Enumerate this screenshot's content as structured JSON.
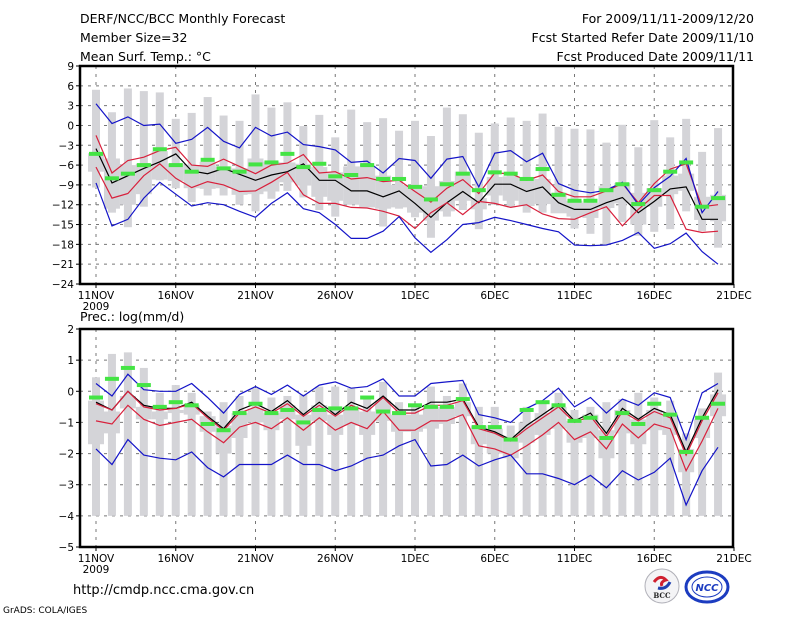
{
  "header": {
    "title": "DERF/NCC/BCC Monthly Forecast",
    "member_size": "Member Size=32",
    "variable": "Mean Surf. Temp.: °C",
    "period": "For 2009/11/11-2009/12/20",
    "started": "Fcst Started Refer Date 2009/11/10",
    "produced": "Fcst Produced Date 2009/11/11"
  },
  "footer": {
    "url": "http://cmdp.ncc.cma.gov.cn",
    "grads": "GrADS: COLA/IGES",
    "logo_left": "BCC",
    "logo_right": "NCC"
  },
  "colors": {
    "mean": "#000000",
    "inner": "#d8203c",
    "outer": "#1414c8",
    "marker": "#44e444",
    "bar": "#d4d4d8",
    "grid": "#777777"
  },
  "chart_data": [
    {
      "type": "line",
      "title": "Mean Surf. Temp.: °C",
      "xlabel": "",
      "ylabel": "",
      "x_ticks": [
        "11NOV",
        "16NOV",
        "21NOV",
        "26NOV",
        "1DEC",
        "6DEC",
        "11DEC",
        "16DEC",
        "21DEC"
      ],
      "x_year_label": "2009",
      "x_days": 40,
      "x_range_days": [
        -1,
        40
      ],
      "ylim": [
        -24,
        9
      ],
      "y_ticks": [
        9,
        6,
        3,
        0,
        -3,
        -6,
        -9,
        -12,
        -15,
        -18,
        -21,
        -24
      ],
      "grid": true,
      "series": [
        {
          "name": "ensemble-mean",
          "color_key": "mean",
          "values": [
            -3.5,
            -8.7,
            -7.6,
            -6.5,
            -5.5,
            -4.3,
            -6.9,
            -7.3,
            -6.5,
            -7.4,
            -8.3,
            -7.5,
            -7.0,
            -5.8,
            -8.3,
            -8.3,
            -9.9,
            -9.9,
            -10.8,
            -9.9,
            -11.8,
            -13.9,
            -11.7,
            -10.0,
            -11.7,
            -8.9,
            -8.9,
            -10.0,
            -9.3,
            -11.7,
            -12.7,
            -12.7,
            -11.7,
            -10.9,
            -13.2,
            -11.5,
            -9.6,
            -9.3,
            -14.2,
            -14.2
          ]
        },
        {
          "name": "inner-upper",
          "color_key": "inner",
          "values": [
            -1.5,
            -7.2,
            -5.3,
            -4.8,
            -3.8,
            -3.3,
            -6.0,
            -6.2,
            -5.1,
            -6.2,
            -7.3,
            -6.0,
            -5.7,
            -4.4,
            -7.2,
            -7.0,
            -8.1,
            -7.9,
            -8.5,
            -8.3,
            -10.0,
            -11.6,
            -9.5,
            -8.2,
            -10.3,
            -7.2,
            -7.3,
            -8.3,
            -7.5,
            -10.0,
            -10.8,
            -10.8,
            -9.9,
            -8.8,
            -11.7,
            -8.8,
            -6.6,
            -5.8,
            -12.3,
            -12.0
          ]
        },
        {
          "name": "inner-lower",
          "color_key": "inner",
          "values": [
            -6.3,
            -11.0,
            -10.3,
            -7.6,
            -5.8,
            -8.0,
            -9.4,
            -8.5,
            -9.0,
            -10.0,
            -9.9,
            -8.6,
            -7.1,
            -10.5,
            -11.8,
            -11.8,
            -12.4,
            -12.5,
            -13.0,
            -13.7,
            -15.6,
            -13.2,
            -11.7,
            -13.5,
            -11.5,
            -11.8,
            -12.4,
            -12.0,
            -13.4,
            -14.1,
            -14.2,
            -13.2,
            -12.3,
            -15.2,
            -12.7,
            -10.6,
            -10.6,
            -15.7,
            -16.2,
            -16.0
          ]
        },
        {
          "name": "outer-upper",
          "color_key": "outer",
          "values": [
            3.3,
            0.3,
            1.3,
            0.0,
            0.2,
            -2.7,
            -2.1,
            -0.3,
            -2.4,
            -3.4,
            -0.3,
            -1.6,
            -1.0,
            -2.9,
            -3.2,
            -3.7,
            -5.6,
            -5.4,
            -7.2,
            -5.0,
            -5.3,
            -8.0,
            -5.1,
            -4.7,
            -9.3,
            -4.2,
            -3.8,
            -5.5,
            -4.2,
            -8.8,
            -9.8,
            -10.2,
            -9.8,
            -8.6,
            -12.0,
            -9.4,
            -7.7,
            -5.0,
            -13.2,
            -10.0
          ]
        },
        {
          "name": "outer-lower",
          "color_key": "outer",
          "values": [
            -8.7,
            -15.2,
            -14.2,
            -11.0,
            -8.6,
            -10.4,
            -12.2,
            -11.7,
            -12.0,
            -13.0,
            -13.9,
            -11.8,
            -10.2,
            -12.6,
            -13.2,
            -15.0,
            -17.1,
            -17.1,
            -16.0,
            -13.8,
            -17.0,
            -19.2,
            -17.3,
            -15.0,
            -14.7,
            -13.9,
            -14.4,
            -15.0,
            -15.6,
            -16.1,
            -18.1,
            -18.2,
            -18.1,
            -17.4,
            -16.2,
            -18.6,
            -17.9,
            -16.3,
            -19.1,
            -21.0
          ]
        },
        {
          "name": "observed-marker",
          "color_key": "marker",
          "values": [
            -4.3,
            -8.0,
            -7.3,
            -6.0,
            -3.6,
            -6.0,
            -7.0,
            -5.2,
            -6.5,
            -7.0,
            -5.9,
            -5.6,
            -4.3,
            -6.3,
            -5.8,
            -7.7,
            -7.5,
            -6.0,
            -8.1,
            -8.1,
            -9.3,
            -11.2,
            -8.9,
            -7.3,
            -9.8,
            -7.1,
            -7.3,
            -8.1,
            -6.6,
            -10.5,
            -11.4,
            -11.4,
            -9.8,
            -8.9,
            -11.9,
            -9.8,
            -7.0,
            -5.6,
            -12.3,
            -11.0
          ]
        }
      ],
      "range_bars_narrow": {
        "top": [
          5.4,
          2.0,
          5.6,
          5.2,
          5.0,
          1.0,
          1.9,
          4.3,
          1.5,
          0.7,
          4.7,
          2.7,
          3.5,
          -0.1,
          1.6,
          -1.8,
          2.4,
          0.5,
          1.1,
          -0.8,
          0.7,
          -1.6,
          2.7,
          1.7,
          -1.1,
          0.3,
          1.2,
          0.7,
          1.8,
          -0.2,
          -0.5,
          -0.6,
          -2.6,
          0.1,
          -3.3,
          0.8,
          -1.8,
          1.0,
          -4.0,
          -0.4
        ],
        "bottom": [
          -9.4,
          -13.2,
          -15.4,
          -12.3,
          -8.3,
          -9.5,
          -11.6,
          -10.6,
          -10.6,
          -12.0,
          -13.0,
          -11.1,
          -9.9,
          -10.9,
          -12.8,
          -13.8,
          -11.7,
          -11.7,
          -15.3,
          -12.6,
          -13.9,
          -17.0,
          -13.8,
          -12.8,
          -15.7,
          -12.0,
          -12.4,
          -13.2,
          -13.2,
          -13.1,
          -15.6,
          -16.4,
          -18.0,
          -14.6,
          -16.7,
          -16.1,
          -15.7,
          -13.0,
          -16.0,
          -18.5
        ]
      },
      "range_bars_wide": {
        "top": [
          -4.2,
          -5.0,
          -6.0,
          -5.8,
          -3.9,
          -5.8,
          -6.0,
          -5.5,
          -6.2,
          -6.5,
          -5.0,
          -5.5,
          -5.6,
          -5.8,
          -6.3,
          -7.1,
          -6.2,
          -6.2,
          -7.6,
          -9.0,
          -9.0,
          -9.2,
          -8.4,
          -7.0,
          -11.0,
          -7.8,
          -7.7,
          -7.8,
          -8.1,
          -10.2,
          -11.4,
          -11.7,
          -9.2,
          -8.7,
          -10.2,
          -9.5,
          -7.6,
          -7.3,
          -10.8,
          -10.5
        ],
        "bottom": [
          -7.0,
          -12.6,
          -12.0,
          -10.4,
          -8.2,
          -8.4,
          -9.5,
          -9.6,
          -9.5,
          -10.5,
          -10.4,
          -10.0,
          -8.6,
          -9.1,
          -10.8,
          -11.4,
          -12.0,
          -12.4,
          -12.6,
          -12.4,
          -13.2,
          -14.4,
          -13.0,
          -11.4,
          -12.7,
          -10.6,
          -11.4,
          -12.2,
          -11.9,
          -13.3,
          -13.8,
          -14.0,
          -12.5,
          -11.8,
          -15.0,
          -12.3,
          -10.4,
          -9.9,
          -14.3,
          -14.5
        ]
      }
    },
    {
      "type": "line",
      "title": "Prec.: log(mm/d)",
      "xlabel": "",
      "ylabel": "",
      "x_ticks": [
        "11NOV",
        "16NOV",
        "21NOV",
        "26NOV",
        "1DEC",
        "6DEC",
        "11DEC",
        "16DEC",
        "21DEC"
      ],
      "x_year_label": "2009",
      "x_days": 40,
      "x_range_days": [
        -1,
        40
      ],
      "ylim": [
        -5,
        2
      ],
      "y_ticks": [
        2,
        1,
        0,
        -1,
        -2,
        -3,
        -4,
        -5
      ],
      "grid": true,
      "series": [
        {
          "name": "ensemble-mean",
          "color_key": "mean",
          "values": [
            -0.35,
            -0.6,
            0.0,
            -0.45,
            -0.55,
            -0.55,
            -0.35,
            -0.8,
            -1.2,
            -0.6,
            -0.4,
            -0.65,
            -0.3,
            -0.75,
            -0.35,
            -0.75,
            -0.35,
            -0.55,
            -0.15,
            -0.6,
            -0.6,
            -0.35,
            -0.35,
            -0.25,
            -1.15,
            -1.3,
            -1.55,
            -1.1,
            -0.75,
            -0.4,
            -0.95,
            -0.7,
            -1.35,
            -0.55,
            -0.9,
            -0.55,
            -0.75,
            -1.95,
            -0.85,
            0.05
          ]
        },
        {
          "name": "inner-upper",
          "color_key": "inner",
          "values": [
            -0.4,
            -0.6,
            0.0,
            -0.5,
            -0.6,
            -0.55,
            -0.4,
            -0.85,
            -1.25,
            -0.7,
            -0.5,
            -0.7,
            -0.4,
            -0.8,
            -0.45,
            -0.8,
            -0.45,
            -0.65,
            -0.2,
            -0.7,
            -0.7,
            -0.45,
            -0.45,
            -0.3,
            -1.2,
            -1.35,
            -1.6,
            -1.2,
            -0.85,
            -0.5,
            -1.0,
            -0.8,
            -1.45,
            -0.65,
            -0.95,
            -0.65,
            -0.85,
            -2.05,
            -0.95,
            -0.05
          ]
        },
        {
          "name": "inner-lower",
          "color_key": "inner",
          "values": [
            -0.95,
            -1.05,
            -0.45,
            -0.9,
            -1.1,
            -1.0,
            -0.9,
            -1.3,
            -1.65,
            -1.15,
            -1.0,
            -1.2,
            -0.85,
            -1.25,
            -0.85,
            -1.25,
            -1.0,
            -1.2,
            -0.65,
            -1.25,
            -1.25,
            -0.95,
            -0.95,
            -0.75,
            -1.75,
            -1.85,
            -2.05,
            -1.75,
            -1.4,
            -1.0,
            -1.55,
            -1.3,
            -1.85,
            -1.05,
            -1.5,
            -1.05,
            -1.2,
            -2.55,
            -1.6,
            -0.55
          ]
        },
        {
          "name": "outer-upper",
          "color_key": "outer",
          "values": [
            0.25,
            -0.15,
            0.55,
            0.05,
            0.0,
            0.0,
            0.25,
            -0.2,
            -0.7,
            -0.1,
            0.15,
            -0.1,
            0.2,
            -0.15,
            0.2,
            0.3,
            0.1,
            0.15,
            0.4,
            -0.15,
            -0.15,
            0.25,
            0.3,
            0.35,
            -0.75,
            -0.85,
            -1.0,
            -0.55,
            -0.3,
            0.1,
            -0.5,
            -0.2,
            -0.7,
            -0.25,
            -0.45,
            -0.05,
            -0.2,
            -1.55,
            -0.05,
            0.25
          ]
        },
        {
          "name": "outer-lower",
          "color_key": "outer",
          "values": [
            -1.85,
            -2.35,
            -1.55,
            -2.05,
            -2.15,
            -2.2,
            -1.95,
            -2.45,
            -2.75,
            -2.35,
            -2.35,
            -2.35,
            -2.05,
            -2.35,
            -2.35,
            -2.55,
            -2.4,
            -2.15,
            -2.05,
            -1.75,
            -1.55,
            -2.4,
            -2.35,
            -2.05,
            -2.4,
            -2.2,
            -2.05,
            -2.65,
            -2.65,
            -2.8,
            -3.0,
            -2.7,
            -3.1,
            -2.55,
            -2.85,
            -2.6,
            -2.15,
            -3.65,
            -2.55,
            -1.8
          ]
        },
        {
          "name": "observed-marker",
          "color_key": "marker",
          "values": [
            -0.2,
            0.4,
            0.75,
            0.2,
            -0.5,
            -0.35,
            -0.45,
            -1.05,
            -1.25,
            -0.7,
            -0.4,
            -0.7,
            -0.6,
            -1.0,
            -0.6,
            -0.55,
            -0.55,
            -0.2,
            -0.65,
            -0.7,
            -0.45,
            -0.5,
            -0.5,
            -0.25,
            -1.15,
            -1.15,
            -1.55,
            -0.6,
            -0.35,
            -0.45,
            -0.95,
            -0.85,
            -1.5,
            -0.7,
            -1.05,
            -0.4,
            -0.75,
            -1.95,
            -0.85,
            -0.4
          ]
        }
      ],
      "range_bars_narrow": {
        "top": [
          0.45,
          1.2,
          1.25,
          0.75,
          -0.05,
          0.2,
          -0.05,
          -0.65,
          -0.35,
          -0.15,
          0.1,
          -0.2,
          -0.15,
          -0.1,
          0.15,
          0.15,
          0.1,
          -0.2,
          0.3,
          -0.35,
          -0.45,
          0.15,
          -0.15,
          0.25,
          -0.5,
          -0.5,
          -1.1,
          -0.5,
          -0.35,
          -0.05,
          -0.6,
          -0.5,
          -0.35,
          -0.25,
          -0.05,
          -0.2,
          -0.3,
          -1.35,
          -0.55,
          0.6
        ],
        "bottom": [
          -4,
          -4,
          -4,
          -4,
          -4,
          -4,
          -4,
          -4,
          -4,
          -4,
          -4,
          -4,
          -4,
          -4,
          -4,
          -4,
          -4,
          -4,
          -4,
          -4,
          -4,
          -4,
          -4,
          -4,
          -4,
          -4,
          -4,
          -4,
          -4,
          -4,
          -4,
          -4,
          -4,
          -4,
          -4,
          -4,
          -4,
          -4,
          -4,
          -4
        ]
      },
      "range_bars_wide": {
        "top": [
          -0.3,
          -0.65,
          -0.15,
          -0.5,
          -0.65,
          -0.6,
          -0.45,
          -0.8,
          -1.1,
          -0.7,
          -0.55,
          -0.7,
          -0.45,
          -0.75,
          -0.45,
          -0.75,
          -0.5,
          -0.65,
          -0.3,
          -0.75,
          -0.75,
          -0.5,
          -0.5,
          -0.35,
          -1.1,
          -1.2,
          -1.45,
          -1.0,
          -0.7,
          -0.5,
          -0.95,
          -0.75,
          -1.25,
          -0.6,
          -0.9,
          -0.6,
          -0.75,
          -1.85,
          -0.9,
          -0.1
        ],
        "bottom": [
          -1.7,
          -1.35,
          -0.55,
          -0.9,
          -0.9,
          -0.7,
          -0.75,
          -1.3,
          -2.0,
          -1.5,
          -1.0,
          -1.25,
          -0.9,
          -1.75,
          -0.95,
          -1.4,
          -1.1,
          -1.4,
          -0.95,
          -1.3,
          -1.3,
          -1.2,
          -1.05,
          -0.8,
          -1.7,
          -2.0,
          -2.15,
          -1.65,
          -1.4,
          -1.2,
          -1.65,
          -1.5,
          -2.15,
          -1.35,
          -1.7,
          -1.25,
          -1.4,
          -2.6,
          -1.5,
          -0.8
        ]
      }
    }
  ]
}
